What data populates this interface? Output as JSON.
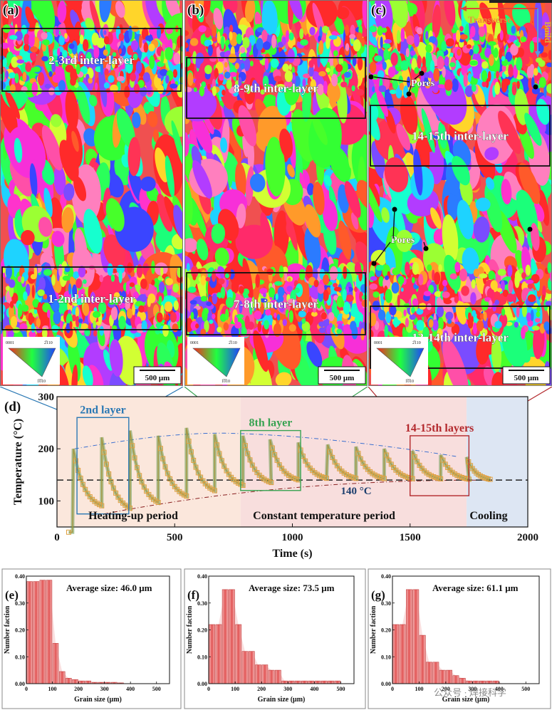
{
  "ebsd_panels": [
    {
      "label": "(a)",
      "seed": 11,
      "scale_bar": "500 μm",
      "ipf_ticks": [
        "0001",
        "2̅110",
        "1̅0̅10"
      ],
      "boxes": [
        {
          "label": "2-3rd inter-layer"
        },
        {
          "label": "1-2nd inter-layer"
        }
      ],
      "pores_label": ""
    },
    {
      "label": "(b)",
      "seed": 23,
      "scale_bar": "500 μm",
      "ipf_ticks": [
        "0001",
        "2̅110",
        "1̅0̅10"
      ],
      "boxes": [
        {
          "label": "8-9th inter-layer"
        },
        {
          "label": "7-8th inter-layer"
        }
      ],
      "pores_label": ""
    },
    {
      "label": "(c)",
      "seed": 37,
      "scale_bar": "500 μm",
      "ipf_ticks": [
        "0001",
        "2̅110",
        "1̅0̅10"
      ],
      "boxes": [
        {
          "label": "14-15th inter-layer"
        },
        {
          "label": "13-14th inter-layer"
        }
      ],
      "pores_label": "Pores",
      "axes": {
        "transverse": "Transverse",
        "build": "Build"
      }
    }
  ],
  "temperature_chart": {
    "label": "(d)",
    "chart_data": {
      "type": "line",
      "xlabel": "Time (s)",
      "ylabel": "Temperature (°C)",
      "xlim": [
        0,
        2000
      ],
      "ylim": [
        50,
        300
      ],
      "x_ticks": [
        0,
        500,
        1000,
        1500,
        2000
      ],
      "y_ticks": [
        100,
        200,
        300
      ],
      "reference_line": {
        "y": 140,
        "label": "140 °C"
      },
      "periods": [
        {
          "name": "Heating-up period",
          "x_range": [
            0,
            780
          ],
          "color": "#fbe7dc"
        },
        {
          "name": "Constant temperature period",
          "x_range": [
            780,
            1740
          ],
          "color": "#f8dedd"
        },
        {
          "name": "Cooling",
          "x_range": [
            1740,
            2000
          ],
          "color": "#dde6f3"
        }
      ],
      "highlight_boxes": [
        {
          "label": "2nd layer",
          "x_range": [
            85,
            305
          ],
          "y_range": [
            75,
            260
          ],
          "color": "#2a78b4"
        },
        {
          "label": "8th layer",
          "x_range": [
            780,
            1035
          ],
          "y_range": [
            120,
            235
          ],
          "color": "#38a352"
        },
        {
          "label": "14-15th layers",
          "x_range": [
            1500,
            1750
          ],
          "y_range": [
            110,
            225
          ],
          "color": "#b3282c"
        }
      ],
      "layer_cycles": [
        {
          "start": 70,
          "peak": 200,
          "end": 82,
          "fall": 120
        },
        {
          "start": 190,
          "peak": 222,
          "end": 75,
          "fall": 120
        },
        {
          "start": 310,
          "peak": 235,
          "end": 86,
          "fall": 120
        },
        {
          "start": 430,
          "peak": 225,
          "end": 100,
          "fall": 120
        },
        {
          "start": 550,
          "peak": 240,
          "end": 110,
          "fall": 120
        },
        {
          "start": 670,
          "peak": 228,
          "end": 122,
          "fall": 120
        },
        {
          "start": 790,
          "peak": 225,
          "end": 128,
          "fall": 120
        },
        {
          "start": 905,
          "peak": 218,
          "end": 134,
          "fall": 120
        },
        {
          "start": 1025,
          "peak": 212,
          "end": 138,
          "fall": 120
        },
        {
          "start": 1150,
          "peak": 208,
          "end": 138,
          "fall": 120
        },
        {
          "start": 1270,
          "peak": 204,
          "end": 138,
          "fall": 120
        },
        {
          "start": 1390,
          "peak": 200,
          "end": 138,
          "fall": 120
        },
        {
          "start": 1510,
          "peak": 196,
          "end": 138,
          "fall": 120
        },
        {
          "start": 1630,
          "peak": 188,
          "end": 138,
          "fall": 120
        },
        {
          "start": 1740,
          "peak": 184,
          "end": 138,
          "fall": 100
        }
      ],
      "initial_point": {
        "x": 50,
        "y": 40
      },
      "upper_envelope": {
        "x_range": [
          75,
          1700
        ],
        "y_start": 200,
        "y_peak": 230,
        "x_peak": 700,
        "y_end": 185
      },
      "lower_envelope": {
        "x_range": [
          200,
          1840
        ],
        "y_start": 75,
        "y_end": 140
      }
    }
  },
  "histograms": [
    {
      "label": "(e)",
      "avg_label": "Average size: 46.0 μm",
      "chart_data": {
        "type": "bar",
        "xlabel": "Grain size (μm)",
        "ylabel": "Number faction",
        "bin_width": 25,
        "x_start": 0,
        "values": [
          0.38,
          0.38,
          0.385,
          0.385,
          0.15,
          0.045,
          0.02,
          0.015,
          0.01,
          0.01,
          0.005,
          0.005,
          0.005,
          0.005,
          0.003,
          0.0,
          0.0,
          0.0,
          0.0,
          0.0
        ],
        "xlim": [
          0,
          550
        ],
        "ylim": [
          0,
          0.4
        ],
        "x_ticks": [
          0,
          100,
          200,
          300,
          400,
          500
        ],
        "y_ticks": [
          0.0,
          0.1,
          0.2,
          0.3,
          0.4
        ]
      }
    },
    {
      "label": "(f)",
      "avg_label": "Average size: 73.5 μm",
      "chart_data": {
        "type": "bar",
        "xlabel": "Grain size (μm)",
        "ylabel": "Number faction",
        "bin_width": 25,
        "x_start": 0,
        "values": [
          0.22,
          0.22,
          0.35,
          0.35,
          0.22,
          0.12,
          0.12,
          0.07,
          0.07,
          0.05,
          0.05,
          0.01,
          0.01,
          0.01,
          0.01,
          0.01,
          0.01,
          0.01,
          0.01,
          0.01
        ],
        "xlim": [
          0,
          550
        ],
        "ylim": [
          0,
          0.4
        ],
        "x_ticks": [
          0,
          100,
          200,
          300,
          400,
          500
        ],
        "y_ticks": [
          0.0,
          0.1,
          0.2,
          0.3,
          0.4
        ]
      }
    },
    {
      "label": "(g)",
      "avg_label": "Average size: 61.1 μm",
      "chart_data": {
        "type": "bar",
        "xlabel": "Grain size (μm)",
        "ylabel": "Number faction",
        "bin_width": 25,
        "x_start": 0,
        "values": [
          0.22,
          0.22,
          0.35,
          0.35,
          0.18,
          0.08,
          0.08,
          0.05,
          0.05,
          0.03,
          0.02,
          0.01,
          0.01,
          0.01,
          0.01,
          0.01,
          0.0,
          0.0,
          0.0,
          0.0
        ],
        "xlim": [
          0,
          550
        ],
        "ylim": [
          0,
          0.4
        ],
        "x_ticks": [
          0,
          100,
          200,
          300,
          400,
          500
        ],
        "y_ticks": [
          0.0,
          0.1,
          0.2,
          0.3,
          0.4
        ]
      }
    }
  ],
  "watermark": "公众号 · 焊接科学"
}
